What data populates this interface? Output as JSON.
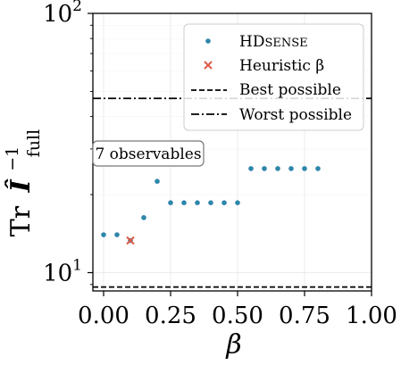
{
  "chart_data": {
    "type": "scatter",
    "xlabel": "β",
    "ylabel": {
      "prefix": "Tr",
      "symbol": "Î",
      "superscript": "−1",
      "subscript": "full"
    },
    "x_ticks": [
      0.0,
      0.25,
      0.5,
      0.75,
      1.0
    ],
    "x_tick_labels": [
      "0.00",
      "0.25",
      "0.50",
      "0.75",
      "1.00"
    ],
    "xlim": [
      -0.04,
      1.0
    ],
    "y_scale": "log",
    "ylim": [
      8.5,
      100
    ],
    "y_major_ticks": [
      10,
      100
    ],
    "y_tick_labels": [
      {
        "base": "10",
        "exp": "1"
      },
      {
        "base": "10",
        "exp": "2"
      }
    ],
    "grid": true,
    "legend_placement": "top-right",
    "annotation": "7 observables",
    "series": [
      {
        "name": "HDSense",
        "marker": "dot",
        "color": "#2e86ab",
        "x": [
          0.0,
          0.05,
          0.1,
          0.15,
          0.2,
          0.25,
          0.3,
          0.35,
          0.4,
          0.45,
          0.5,
          0.55,
          0.6,
          0.65,
          0.7,
          0.75,
          0.8
        ],
        "y": [
          14.0,
          14.0,
          13.3,
          16.3,
          22.5,
          18.6,
          18.6,
          18.6,
          18.6,
          18.6,
          18.6,
          25.2,
          25.2,
          25.2,
          25.2,
          25.2,
          25.2
        ]
      },
      {
        "name": "Heuristic β",
        "marker": "x",
        "color": "#e05a47",
        "x": [
          0.1
        ],
        "y": [
          13.3
        ]
      }
    ],
    "reference_lines": [
      {
        "name": "Best possible",
        "style": "dashed",
        "y": 8.8
      },
      {
        "name": "Worst possible",
        "style": "dashdot",
        "y": 47
      }
    ]
  }
}
